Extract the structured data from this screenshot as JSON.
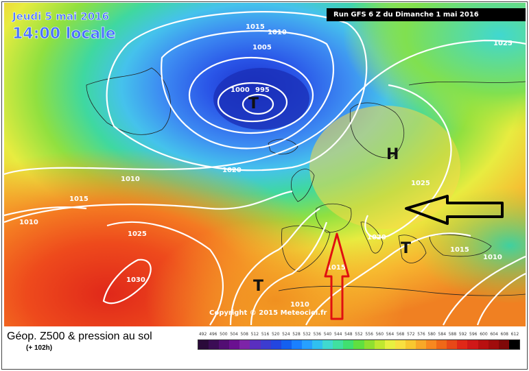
{
  "header": {
    "date_label": "Jeudi 5 mai 2016",
    "time_label": "14:00 locale",
    "run_label": "Run GFS 6 Z du Dimanche 1 mai 2016"
  },
  "map": {
    "copyright": "Copyright © 2015 Meteociel.fr",
    "isobar_labels": [
      "1015",
      "1010",
      "1005",
      "1000",
      "995",
      "1025",
      "1020",
      "1010",
      "1015",
      "1010",
      "1025",
      "1030",
      "1025",
      "1020",
      "1015",
      "1010",
      "1015",
      "1010"
    ],
    "pressure_systems": [
      "T",
      "H",
      "T",
      "T"
    ],
    "arrow_colors": {
      "black_arrow": "#000000",
      "red_arrow": "#e01010"
    }
  },
  "legend": {
    "title": "Géop. Z500 & pression au sol",
    "subtitle": "(+ 102h)",
    "scale_values": [
      "492",
      "496",
      "500",
      "504",
      "508",
      "512",
      "516",
      "520",
      "524",
      "528",
      "532",
      "536",
      "540",
      "544",
      "548",
      "552",
      "556",
      "560",
      "564",
      "568",
      "572",
      "576",
      "580",
      "584",
      "588",
      "592",
      "596",
      "600",
      "604",
      "608",
      "612"
    ],
    "scale_colors": [
      "#2a0a3a",
      "#3b0c55",
      "#520e73",
      "#6a1090",
      "#7d24a8",
      "#5a2fbf",
      "#3c3cd0",
      "#2346e0",
      "#1460f0",
      "#1a80ff",
      "#27a0ff",
      "#30c0f0",
      "#40d8d0",
      "#40e0a0",
      "#40e070",
      "#60e040",
      "#90e030",
      "#c0e830",
      "#e8f040",
      "#f8e040",
      "#f8c830",
      "#f8a828",
      "#f88820",
      "#f06818",
      "#e84818",
      "#e02818",
      "#d01818",
      "#b81010",
      "#a00c0c",
      "#800808",
      "#000000"
    ]
  }
}
